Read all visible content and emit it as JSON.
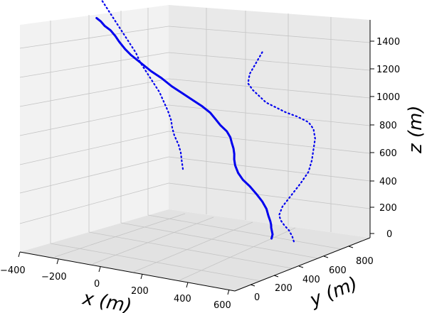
{
  "chart_data": {
    "type": "line3d",
    "title": "",
    "xlabel": "x (m)",
    "ylabel": "y (m)",
    "zlabel": "z (m)",
    "x_ticks": [
      "−400",
      "−200",
      "0",
      "200",
      "400",
      "600"
    ],
    "y_ticks": [
      "0",
      "200",
      "400",
      "600",
      "800"
    ],
    "z_ticks": [
      "0",
      "200",
      "400",
      "600",
      "800",
      "1000",
      "1200",
      "1400"
    ],
    "xlim": [
      -400,
      600
    ],
    "ylim": [
      0,
      900
    ],
    "zlim": [
      0,
      1500
    ],
    "grid": true,
    "line_color": "#0000ee",
    "series": [
      {
        "style": "solid",
        "points": [
          [
            500,
            450,
            90
          ],
          [
            505,
            450,
            120
          ],
          [
            495,
            455,
            160
          ],
          [
            492,
            458,
            180
          ],
          [
            485,
            462,
            200
          ],
          [
            470,
            470,
            230
          ],
          [
            455,
            478,
            270
          ],
          [
            430,
            485,
            310
          ],
          [
            400,
            490,
            350
          ],
          [
            360,
            500,
            390
          ],
          [
            320,
            510,
            420
          ],
          [
            290,
            520,
            455
          ],
          [
            272,
            525,
            500
          ],
          [
            268,
            525,
            540
          ],
          [
            272,
            520,
            580
          ],
          [
            272,
            515,
            620
          ],
          [
            268,
            510,
            660
          ],
          [
            265,
            505,
            700
          ],
          [
            252,
            500,
            740
          ],
          [
            230,
            490,
            780
          ],
          [
            210,
            485,
            820
          ],
          [
            190,
            480,
            860
          ],
          [
            160,
            470,
            900
          ],
          [
            120,
            460,
            940
          ],
          [
            80,
            450,
            980
          ],
          [
            40,
            440,
            1020
          ],
          [
            0,
            430,
            1070
          ],
          [
            -40,
            420,
            1110
          ],
          [
            -80,
            410,
            1160
          ],
          [
            -120,
            400,
            1210
          ],
          [
            -140,
            390,
            1250
          ],
          [
            -160,
            380,
            1300
          ],
          [
            -170,
            370,
            1340
          ],
          [
            -185,
            360,
            1380
          ],
          [
            -205,
            350,
            1410
          ],
          [
            -220,
            345,
            1440
          ],
          [
            -235,
            340,
            1460
          ]
        ]
      },
      {
        "style": "dotted",
        "points": [
          [
            -260,
            900,
            170
          ],
          [
            -265,
            900,
            220
          ],
          [
            -270,
            900,
            280
          ],
          [
            -280,
            900,
            330
          ],
          [
            -300,
            900,
            390
          ],
          [
            -310,
            900,
            440
          ],
          [
            -315,
            900,
            490
          ],
          [
            -330,
            900,
            550
          ],
          [
            -350,
            900,
            610
          ],
          [
            -370,
            900,
            670
          ],
          [
            -400,
            900,
            730
          ],
          [
            -430,
            900,
            790
          ],
          [
            -460,
            900,
            850
          ],
          [
            -480,
            900,
            910
          ],
          [
            -510,
            900,
            970
          ],
          [
            -540,
            900,
            1030
          ],
          [
            -570,
            900,
            1090
          ],
          [
            -600,
            900,
            1150
          ],
          [
            -630,
            900,
            1210
          ],
          [
            -660,
            900,
            1270
          ],
          [
            -690,
            900,
            1330
          ],
          [
            -720,
            900,
            1390
          ],
          [
            -750,
            900,
            1440
          ]
        ]
      },
      {
        "style": "dotted",
        "points": [
          [
            620,
            430,
            110
          ],
          [
            620,
            420,
            150
          ],
          [
            620,
            400,
            200
          ],
          [
            620,
            370,
            250
          ],
          [
            620,
            350,
            290
          ],
          [
            620,
            340,
            330
          ],
          [
            620,
            360,
            380
          ],
          [
            620,
            410,
            430
          ],
          [
            620,
            470,
            490
          ],
          [
            620,
            520,
            550
          ],
          [
            620,
            540,
            620
          ],
          [
            620,
            550,
            690
          ],
          [
            620,
            560,
            760
          ],
          [
            620,
            550,
            830
          ],
          [
            620,
            520,
            890
          ],
          [
            620,
            450,
            960
          ],
          [
            620,
            380,
            1020
          ],
          [
            620,
            320,
            1080
          ],
          [
            620,
            260,
            1140
          ],
          [
            620,
            220,
            1200
          ],
          [
            620,
            180,
            1260
          ],
          [
            620,
            150,
            1320
          ],
          [
            620,
            160,
            1380
          ],
          [
            620,
            200,
            1440
          ],
          [
            620,
            240,
            1500
          ]
        ]
      }
    ]
  }
}
